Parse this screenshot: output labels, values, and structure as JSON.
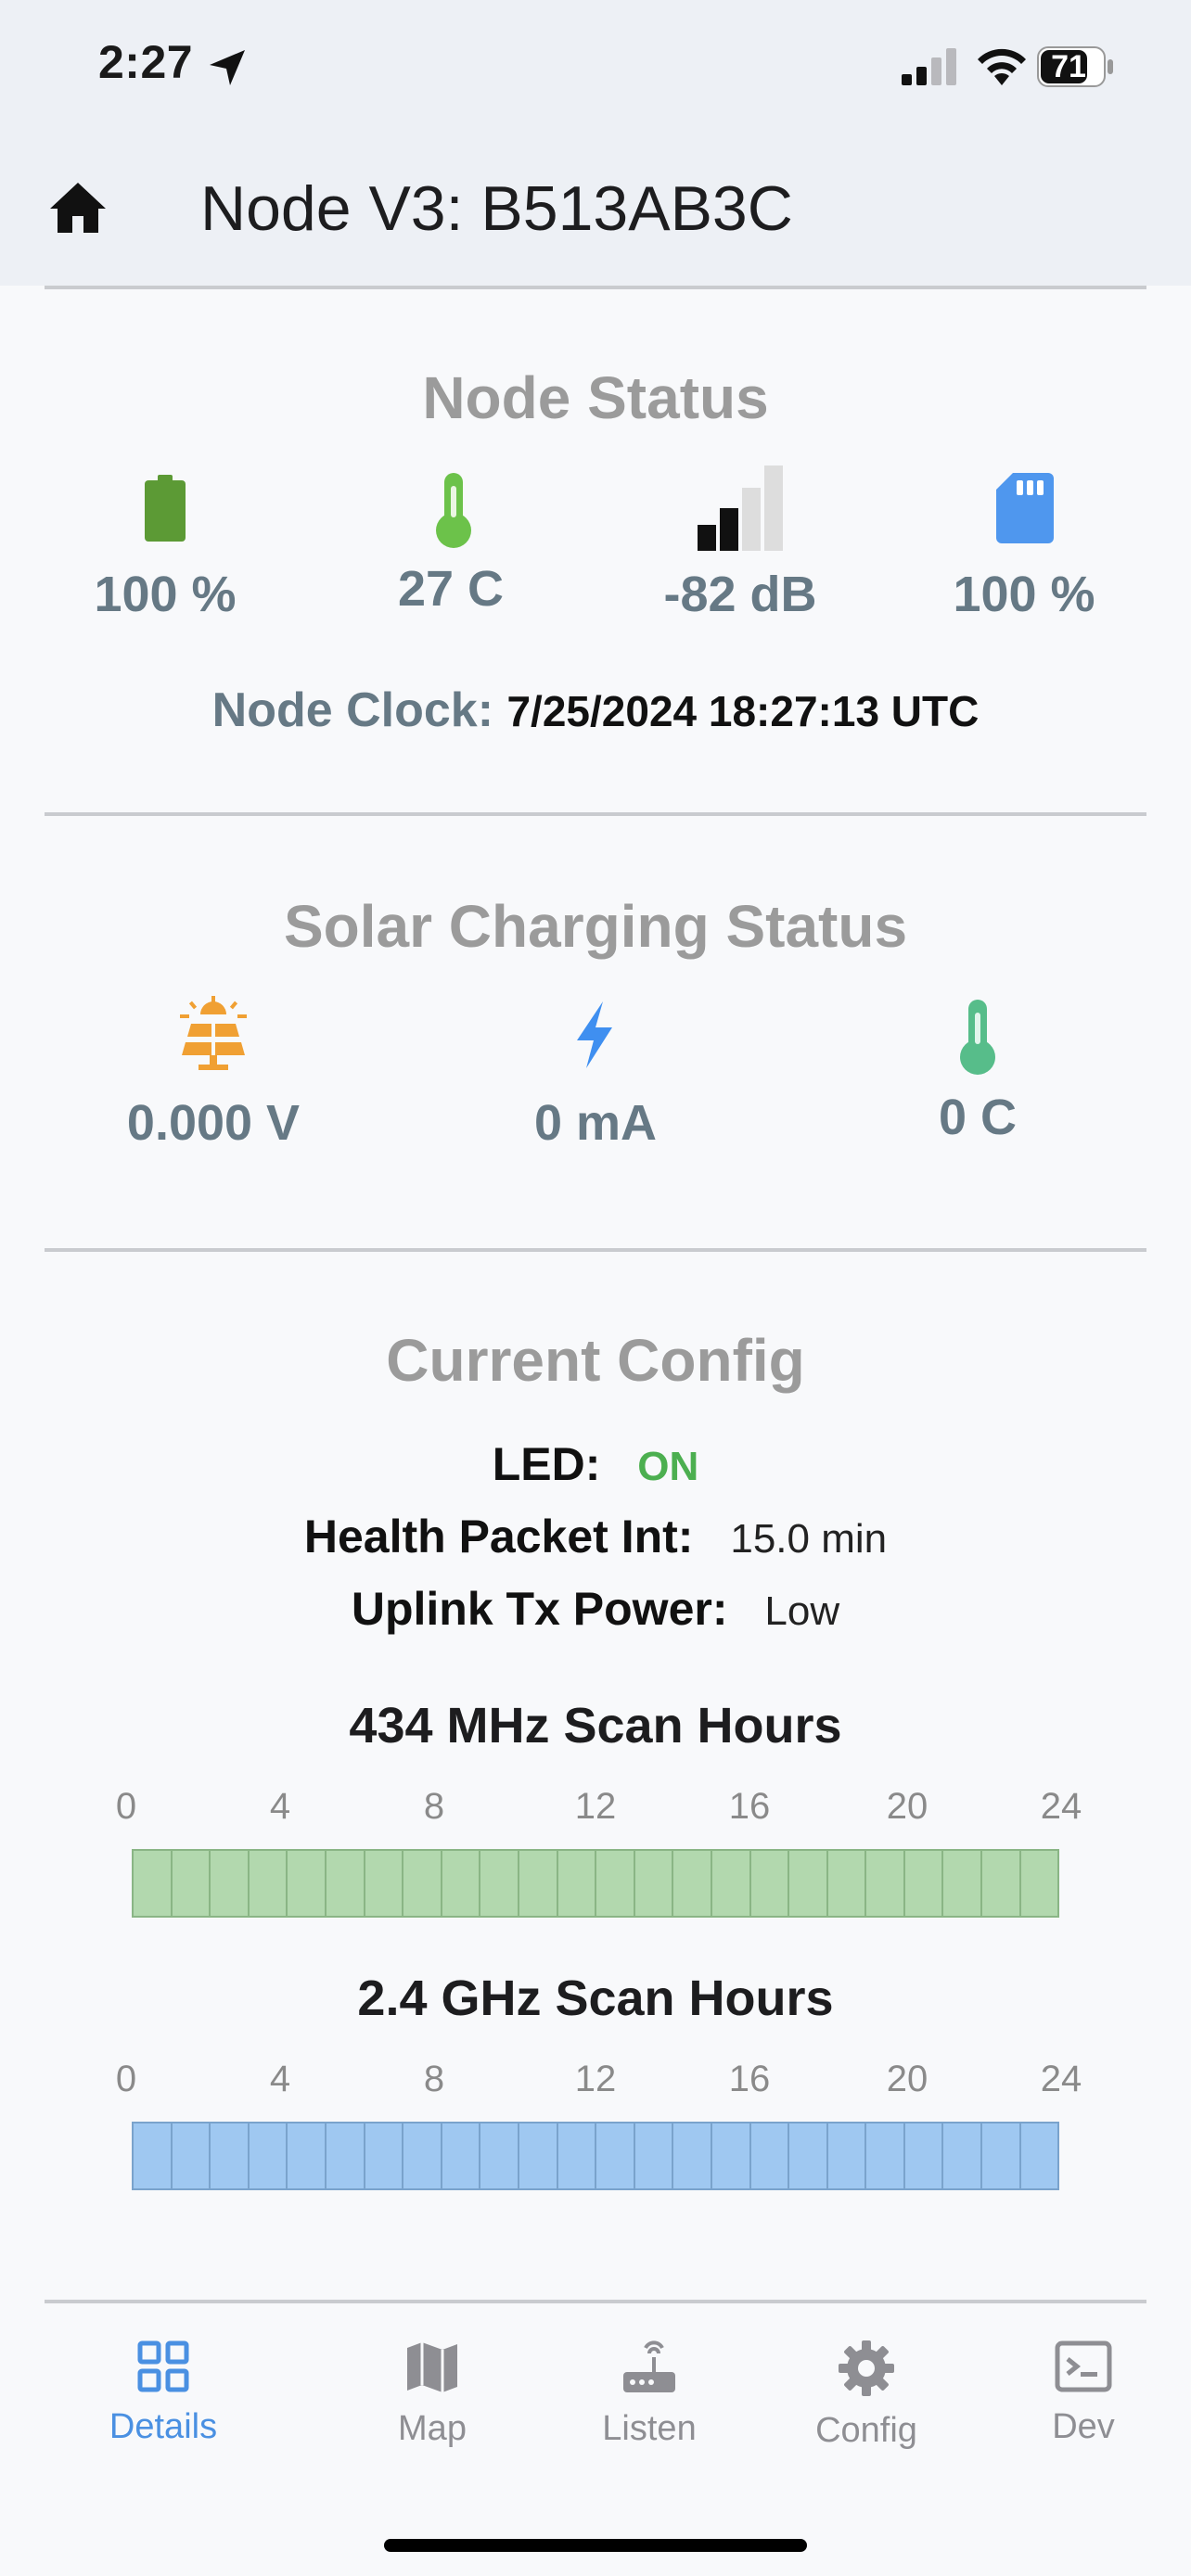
{
  "status_bar": {
    "time": "2:27",
    "battery": "71"
  },
  "header": {
    "title": "Node V3:  B513AB3C"
  },
  "node_status": {
    "title": "Node Status",
    "battery": "100 %",
    "temperature": "27 C",
    "signal": "-82 dB",
    "storage": "100 %",
    "clock_label": "Node Clock:",
    "clock_value": "7/25/2024 18:27:13 UTC"
  },
  "solar_status": {
    "title": "Solar Charging Status",
    "voltage": "0.000 V",
    "current": "0 mA",
    "temperature": "0 C"
  },
  "current_config": {
    "title": "Current Config",
    "led_label": "LED:",
    "led_value": "ON",
    "health_label": "Health Packet Int:",
    "health_value": "15.0 min",
    "uplink_label": "Uplink Tx Power:",
    "uplink_value": "Low"
  },
  "scan_434": {
    "title": "434 MHz Scan Hours",
    "ticks": [
      "0",
      "4",
      "8",
      "12",
      "16",
      "20",
      "24"
    ],
    "hours_enabled": 24,
    "fill_color": "#b2d8ae",
    "border_color": "#8ab585"
  },
  "scan_24": {
    "title": "2.4 GHz Scan Hours",
    "ticks": [
      "0",
      "4",
      "8",
      "12",
      "16",
      "20",
      "24"
    ],
    "hours_enabled": 24,
    "fill_color": "#9fc8f1",
    "border_color": "#7aa3cc"
  },
  "tabs": [
    {
      "label": "Details",
      "icon": "grid-icon",
      "active": true
    },
    {
      "label": "Map",
      "icon": "map-icon",
      "active": false
    },
    {
      "label": "Listen",
      "icon": "router-icon",
      "active": false
    },
    {
      "label": "Config",
      "icon": "gear-icon",
      "active": false
    },
    {
      "label": "Dev",
      "icon": "terminal-icon",
      "active": false
    }
  ],
  "colors": {
    "accent": "#4a90e2",
    "battery_green": "#5c9a35",
    "thermo_green": "#6cc24a",
    "sd_blue": "#4f97ee",
    "solar_orange": "#f0a033",
    "bolt_blue": "#3f8ff0",
    "solar_thermo": "#57bd8a"
  }
}
